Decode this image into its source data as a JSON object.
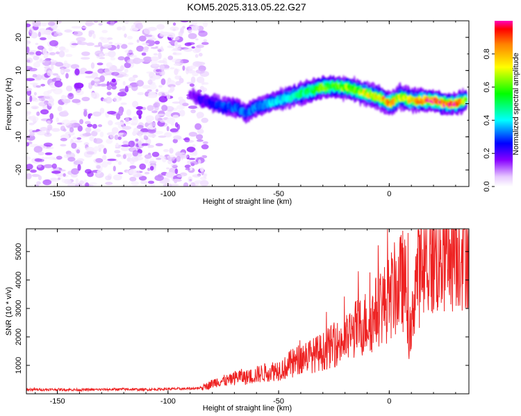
{
  "page": {
    "title": "KOM5.2025.313.05.22.G27"
  },
  "chart_data": [
    {
      "type": "heatmap",
      "title": "KOM5.2025.313.05.22.G27",
      "xlabel": "Height of straight line (km)",
      "ylabel": "Frequency (Hz)",
      "xlim": [
        -164,
        36
      ],
      "ylim": [
        -25,
        25
      ],
      "xticks": [
        -150,
        -100,
        -50,
        0
      ],
      "yticks": [
        -20,
        -10,
        0,
        10,
        20
      ],
      "grid": false,
      "colorbar": {
        "label": "Normalized spectral amplitude",
        "range": [
          0,
          1
        ],
        "ticks": [
          0.0,
          0.2,
          0.4,
          0.6,
          0.8
        ],
        "tick_labels": [
          "0.0",
          "0.2",
          "0.4",
          "0.6",
          "0.8"
        ],
        "colormap": [
          "#ffffff",
          "#cc88ff",
          "#7f00ff",
          "#0000ff",
          "#00ffff",
          "#00ff00",
          "#ffff00",
          "#ff8000",
          "#ff0000"
        ]
      },
      "noise_region": {
        "x_range": [
          -164,
          -83
        ],
        "amplitude_range": [
          0.02,
          0.15
        ],
        "color": "purple"
      },
      "signal_ridge": {
        "x": [
          -90,
          -85,
          -80,
          -75,
          -70,
          -65,
          -60,
          -55,
          -50,
          -45,
          -40,
          -35,
          -30,
          -25,
          -20,
          -15,
          -10,
          -5,
          0,
          5,
          10,
          15,
          20,
          25,
          30,
          35
        ],
        "frequency": [
          3,
          1,
          0,
          -1,
          -1,
          -3,
          -1,
          0,
          1,
          2,
          3,
          4,
          5,
          5,
          5,
          4,
          3,
          2,
          0,
          2,
          1,
          1,
          1,
          0,
          0,
          1
        ],
        "amplitude": [
          0.15,
          0.22,
          0.25,
          0.28,
          0.3,
          0.3,
          0.32,
          0.35,
          0.38,
          0.42,
          0.48,
          0.55,
          0.58,
          0.6,
          0.62,
          0.6,
          0.7,
          0.72,
          0.8,
          0.65,
          0.75,
          0.85,
          0.95,
          0.9,
          0.95,
          0.6
        ]
      }
    },
    {
      "type": "line",
      "xlabel": "Height of straight line (km)",
      "ylabel": "SNR (10 * v/v)",
      "xlim": [
        -164,
        36
      ],
      "ylim": [
        0,
        5800
      ],
      "xticks": [
        -150,
        -100,
        -50,
        0
      ],
      "yticks": [
        1000,
        2000,
        3000,
        4000,
        5000
      ],
      "grid": false,
      "color": "#ee2222",
      "series": [
        {
          "name": "SNR",
          "x": [
            -164,
            -150,
            -140,
            -130,
            -120,
            -110,
            -100,
            -90,
            -85,
            -82,
            -78,
            -72,
            -68,
            -65,
            -62,
            -58,
            -55,
            -50,
            -47,
            -45,
            -42,
            -40,
            -38,
            -35,
            -32,
            -30,
            -27,
            -25,
            -22,
            -20,
            -17,
            -15,
            -12,
            -10,
            -8,
            -6,
            -4,
            -2,
            0,
            2,
            4,
            6,
            8,
            9,
            10,
            11,
            12,
            14,
            16,
            18,
            20,
            22,
            24,
            26,
            28,
            30,
            32,
            34,
            36
          ],
          "y": [
            150,
            150,
            140,
            150,
            160,
            150,
            170,
            180,
            210,
            300,
            450,
            500,
            650,
            600,
            650,
            750,
            800,
            900,
            950,
            1100,
            1200,
            1300,
            1400,
            1400,
            1500,
            1550,
            1700,
            1800,
            1900,
            1950,
            2200,
            2400,
            2500,
            2700,
            2700,
            3000,
            3300,
            3300,
            3500,
            3800,
            3900,
            4200,
            3700,
            2000,
            2100,
            3500,
            4300,
            4500,
            4600,
            4900,
            5000,
            5100,
            5200,
            5300,
            5400,
            5500,
            5550,
            5600,
            5650
          ]
        }
      ]
    }
  ]
}
